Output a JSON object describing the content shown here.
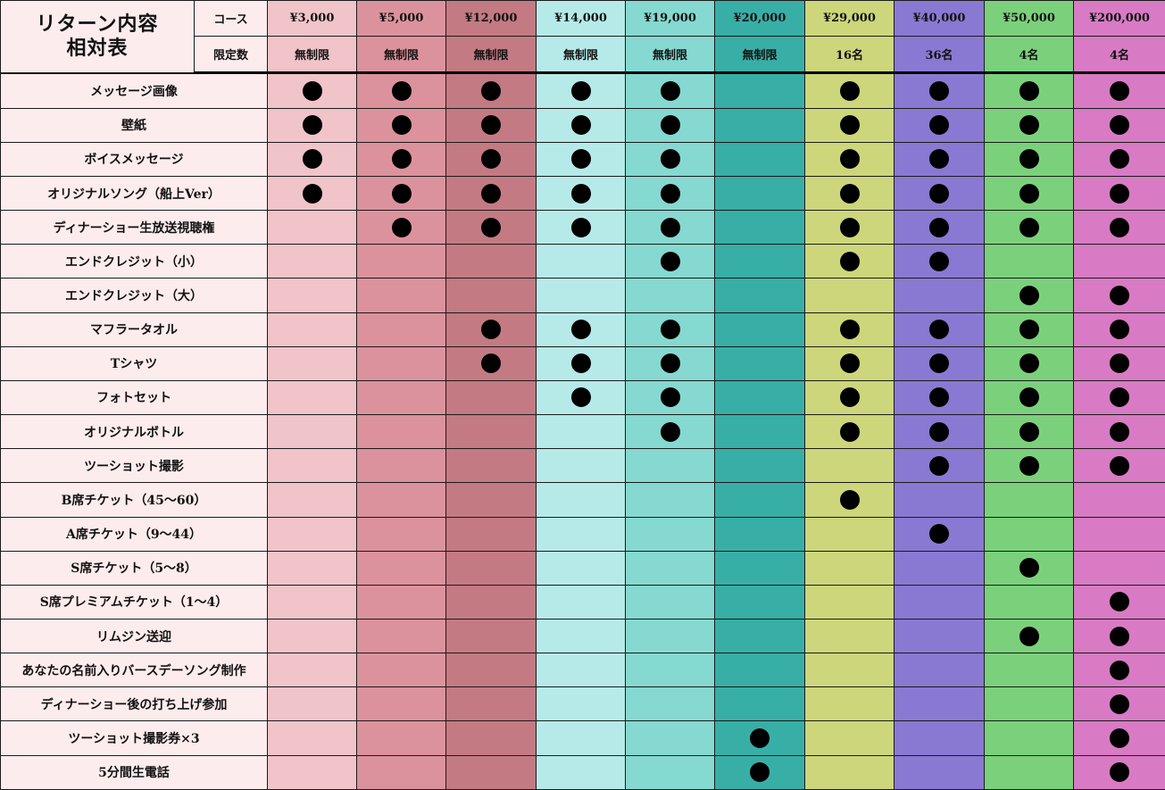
{
  "table_title": [
    "リターン内容",
    "相対表"
  ],
  "header_labels": {
    "course": "コース",
    "limit": "限定数"
  },
  "columns": [
    {
      "price": "¥3,000",
      "limit": "無制限",
      "color": "#f0c4c9"
    },
    {
      "price": "¥5,000",
      "limit": "無制限",
      "color": "#dc929c"
    },
    {
      "price": "¥12,000",
      "limit": "無制限",
      "color": "#c47a83"
    },
    {
      "price": "¥14,000",
      "limit": "無制限",
      "color": "#b6eae8"
    },
    {
      "price": "¥19,000",
      "limit": "無制限",
      "color": "#85d9d0"
    },
    {
      "price": "¥20,000",
      "limit": "無制限",
      "color": "#38afa6"
    },
    {
      "price": "¥29,000",
      "limit": "16名",
      "color": "#cdd67a"
    },
    {
      "price": "¥40,000",
      "limit": "36名",
      "color": "#8a79d2"
    },
    {
      "price": "¥50,000",
      "limit": "4名",
      "color": "#7bd17b"
    },
    {
      "price": "¥200,000",
      "limit": "4名",
      "color": "#d87bc4"
    }
  ],
  "rows": [
    {
      "label": "メッセージ画像",
      "marks": [
        1,
        1,
        1,
        1,
        1,
        0,
        1,
        1,
        1,
        1
      ]
    },
    {
      "label": "壁紙",
      "marks": [
        1,
        1,
        1,
        1,
        1,
        0,
        1,
        1,
        1,
        1
      ]
    },
    {
      "label": "ボイスメッセージ",
      "marks": [
        1,
        1,
        1,
        1,
        1,
        0,
        1,
        1,
        1,
        1
      ]
    },
    {
      "label": "オリジナルソング（船上Ver）",
      "marks": [
        1,
        1,
        1,
        1,
        1,
        0,
        1,
        1,
        1,
        1
      ]
    },
    {
      "label": "ディナーショー生放送視聴権",
      "marks": [
        0,
        1,
        1,
        1,
        1,
        0,
        1,
        1,
        1,
        1
      ]
    },
    {
      "label": "エンドクレジット（小）",
      "marks": [
        0,
        0,
        0,
        0,
        1,
        0,
        1,
        1,
        0,
        0
      ]
    },
    {
      "label": "エンドクレジット（大）",
      "marks": [
        0,
        0,
        0,
        0,
        0,
        0,
        0,
        0,
        1,
        1
      ]
    },
    {
      "label": "マフラータオル",
      "marks": [
        0,
        0,
        1,
        1,
        1,
        0,
        1,
        1,
        1,
        1
      ]
    },
    {
      "label": "Tシャツ",
      "marks": [
        0,
        0,
        1,
        1,
        1,
        0,
        1,
        1,
        1,
        1
      ]
    },
    {
      "label": "フォトセット",
      "marks": [
        0,
        0,
        0,
        1,
        1,
        0,
        1,
        1,
        1,
        1
      ]
    },
    {
      "label": "オリジナルボトル",
      "marks": [
        0,
        0,
        0,
        0,
        1,
        0,
        1,
        1,
        1,
        1
      ]
    },
    {
      "label": "ツーショット撮影",
      "marks": [
        0,
        0,
        0,
        0,
        0,
        0,
        0,
        1,
        1,
        1
      ]
    },
    {
      "label": "B席チケット（45〜60）",
      "marks": [
        0,
        0,
        0,
        0,
        0,
        0,
        1,
        0,
        0,
        0
      ]
    },
    {
      "label": "A席チケット（9〜44）",
      "marks": [
        0,
        0,
        0,
        0,
        0,
        0,
        0,
        1,
        0,
        0
      ]
    },
    {
      "label": "S席チケット（5〜8）",
      "marks": [
        0,
        0,
        0,
        0,
        0,
        0,
        0,
        0,
        1,
        0
      ]
    },
    {
      "label": "S席プレミアムチケット（1〜4）",
      "marks": [
        0,
        0,
        0,
        0,
        0,
        0,
        0,
        0,
        0,
        1
      ]
    },
    {
      "label": "リムジン送迎",
      "marks": [
        0,
        0,
        0,
        0,
        0,
        0,
        0,
        0,
        1,
        1
      ]
    },
    {
      "label": "あなたの名前入りバースデーソング制作",
      "marks": [
        0,
        0,
        0,
        0,
        0,
        0,
        0,
        0,
        0,
        1
      ]
    },
    {
      "label": "ディナーショー後の打ち上げ参加",
      "marks": [
        0,
        0,
        0,
        0,
        0,
        0,
        0,
        0,
        0,
        1
      ]
    },
    {
      "label": "ツーショット撮影券×3",
      "marks": [
        0,
        0,
        0,
        0,
        0,
        1,
        0,
        0,
        0,
        1
      ]
    },
    {
      "label": "5分間生電話",
      "marks": [
        0,
        0,
        0,
        0,
        0,
        1,
        0,
        0,
        0,
        1
      ]
    }
  ]
}
